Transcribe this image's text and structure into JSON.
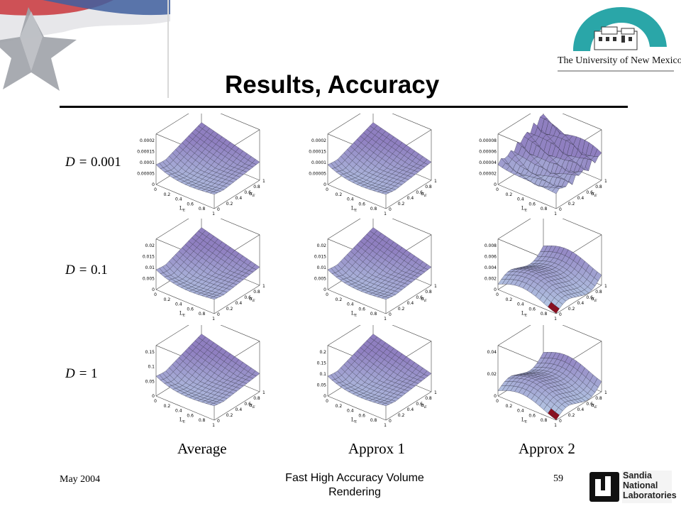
{
  "slide": {
    "title": "Results, Accuracy",
    "institution": "The University of New Mexico",
    "rows": [
      {
        "label_prefix": "D = ",
        "label_value": "0.001"
      },
      {
        "label_prefix": "D = ",
        "label_value": "0.1"
      },
      {
        "label_prefix": "D = ",
        "label_value": "1"
      }
    ],
    "columns": [
      "Average",
      "Approx 1",
      "Approx 2"
    ],
    "plot_axes": {
      "x_label": "L",
      "x_sub": "E",
      "y_label": "α",
      "y_sub": "E"
    },
    "plots": [
      {
        "z_ticks": [
          "0.0002",
          "0.00015",
          "0.0001",
          "0.00005",
          "0"
        ],
        "style": "smooth"
      },
      {
        "z_ticks": [
          "0.0002",
          "0.00015",
          "0.0001",
          "0.00005",
          "0"
        ],
        "style": "smooth"
      },
      {
        "z_ticks": [
          "0.00008",
          "0.00006",
          "0.00004",
          "0.00002",
          "0"
        ],
        "style": "jagged"
      },
      {
        "z_ticks": [
          "0.02",
          "0.015",
          "0.01",
          "0.005",
          "0"
        ],
        "style": "smooth"
      },
      {
        "z_ticks": [
          "0.02",
          "0.015",
          "0.01",
          "0.005",
          "0"
        ],
        "style": "smooth"
      },
      {
        "z_ticks": [
          "0.008",
          "0.006",
          "0.004",
          "0.002",
          "0"
        ],
        "style": "wavy"
      },
      {
        "z_ticks": [
          "0.15",
          "0.1",
          "0.05",
          "0"
        ],
        "style": "smooth"
      },
      {
        "z_ticks": [
          "0.2",
          "0.15",
          "0.1",
          "0.05",
          "0"
        ],
        "style": "smooth"
      },
      {
        "z_ticks": [
          "0.04",
          "0.02",
          "0"
        ],
        "style": "wavy"
      }
    ],
    "x_ticks": [
      "0",
      "0.2",
      "0.4",
      "0.6",
      "0.8",
      "1"
    ],
    "y_ticks": [
      "1",
      "0.8",
      "0.6",
      "0.4",
      "0.2",
      "0"
    ]
  },
  "footer": {
    "date": "May 2004",
    "title": "Fast High Accuracy Volume Rendering",
    "page": "59",
    "sandia_lines": [
      "Sandia",
      "National",
      "Laboratories"
    ]
  },
  "colors": {
    "surface_light": "#b9d0e8",
    "surface_purple": "#8f7fc0",
    "surface_red": "#8a1020"
  }
}
